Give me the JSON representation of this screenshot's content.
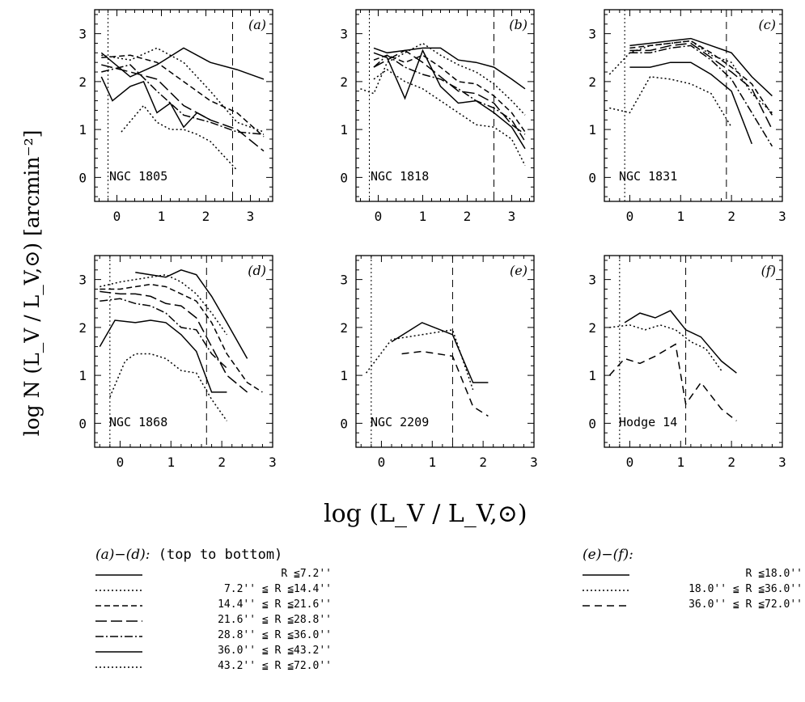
{
  "figure": {
    "ylabel": "log N (L_V / L_V,⊙) [arcmin⁻²]",
    "xlabel": "log (L_V / L_V,⊙)"
  },
  "chart_data": [
    {
      "type": "line",
      "panel_tag": "(a)",
      "cluster": "NGC 1805",
      "xlim": [
        -0.5,
        3.5
      ],
      "ylim": [
        -0.5,
        3.5
      ],
      "xticks": [
        "0",
        "1",
        "2",
        "3"
      ],
      "yticks": [
        "0",
        "1",
        "2",
        "3"
      ],
      "vline_dotted": -0.2,
      "vline_dashed": 2.6,
      "series": [
        {
          "style": "solid",
          "x": [
            -0.35,
            0.3,
            0.9,
            1.5,
            2.1,
            2.7,
            3.3
          ],
          "y": [
            2.6,
            2.1,
            2.35,
            2.7,
            2.4,
            2.25,
            2.05
          ]
        },
        {
          "style": "dotted",
          "x": [
            -0.35,
            0.3,
            0.9,
            1.5,
            2.1,
            2.7,
            3.3
          ],
          "y": [
            2.55,
            2.45,
            2.7,
            2.4,
            1.8,
            1.15,
            0.95
          ]
        },
        {
          "style": "short-dash",
          "x": [
            -0.35,
            0.3,
            0.9,
            1.5,
            2.1,
            2.7,
            3.3
          ],
          "y": [
            2.5,
            2.55,
            2.4,
            2.0,
            1.6,
            1.35,
            0.85
          ]
        },
        {
          "style": "long-dash",
          "x": [
            -0.35,
            0.3,
            0.9,
            1.5,
            2.1,
            2.7,
            3.3
          ],
          "y": [
            2.35,
            2.2,
            2.05,
            1.5,
            1.2,
            1.0,
            0.55
          ]
        },
        {
          "style": "dash-dot",
          "x": [
            -0.35,
            0.3,
            0.9,
            1.5,
            2.1,
            2.7,
            3.3
          ],
          "y": [
            2.2,
            2.35,
            1.8,
            1.3,
            1.15,
            0.95,
            0.9
          ]
        },
        {
          "style": "solid",
          "x": [
            -0.35,
            -0.1,
            0.3,
            0.6,
            0.9,
            1.2,
            1.5,
            1.8,
            2.1
          ],
          "y": [
            2.1,
            1.6,
            1.9,
            2.0,
            1.35,
            1.55,
            1.05,
            1.35,
            1.2
          ]
        },
        {
          "style": "dotted",
          "x": [
            0.1,
            0.6,
            0.9,
            1.2,
            1.5,
            1.8,
            2.1,
            2.4,
            2.7
          ],
          "y": [
            0.95,
            1.5,
            1.15,
            1.0,
            1.0,
            0.9,
            0.75,
            0.45,
            0.15
          ]
        }
      ]
    },
    {
      "type": "line",
      "panel_tag": "(b)",
      "cluster": "NGC 1818",
      "xlim": [
        -0.5,
        3.5
      ],
      "ylim": [
        -0.5,
        3.5
      ],
      "xticks": [
        "0",
        "1",
        "2",
        "3"
      ],
      "yticks": [
        "0",
        "1",
        "2",
        "3"
      ],
      "vline_dotted": -0.2,
      "vline_dashed": 2.6,
      "series": [
        {
          "style": "solid",
          "x": [
            -0.1,
            0.2,
            0.6,
            1.0,
            1.4,
            1.8,
            2.2,
            2.6,
            3.0,
            3.3
          ],
          "y": [
            2.7,
            2.6,
            2.65,
            2.7,
            2.7,
            2.45,
            2.4,
            2.3,
            2.05,
            1.85
          ]
        },
        {
          "style": "dotted",
          "x": [
            -0.4,
            -0.1,
            0.2,
            0.6,
            1.0,
            1.4,
            1.8,
            2.2,
            2.6,
            3.0,
            3.3
          ],
          "y": [
            1.85,
            1.75,
            2.4,
            2.6,
            2.8,
            2.55,
            2.35,
            2.2,
            1.95,
            1.6,
            1.3
          ]
        },
        {
          "style": "short-dash",
          "x": [
            -0.1,
            0.2,
            0.6,
            1.0,
            1.4,
            1.8,
            2.2,
            2.6,
            3.0,
            3.3
          ],
          "y": [
            2.45,
            2.55,
            2.4,
            2.55,
            2.3,
            2.0,
            1.95,
            1.7,
            1.35,
            0.95
          ]
        },
        {
          "style": "long-dash",
          "x": [
            -0.1,
            0.2,
            0.6,
            1.0,
            1.4,
            1.8,
            2.2,
            2.6,
            3.0,
            3.3
          ],
          "y": [
            2.3,
            2.45,
            2.65,
            2.4,
            2.1,
            1.8,
            1.75,
            1.55,
            1.1,
            0.9
          ]
        },
        {
          "style": "dash-dot",
          "x": [
            -0.1,
            0.2,
            0.6,
            1.0,
            1.4,
            1.8,
            2.2,
            2.6,
            3.0,
            3.3
          ],
          "y": [
            2.3,
            2.55,
            2.3,
            2.15,
            2.05,
            1.85,
            1.6,
            1.45,
            1.2,
            0.75
          ]
        },
        {
          "style": "solid",
          "x": [
            -0.1,
            0.2,
            0.6,
            1.0,
            1.4,
            1.8,
            2.2,
            2.6,
            3.0,
            3.3
          ],
          "y": [
            2.6,
            2.5,
            1.65,
            2.65,
            1.9,
            1.55,
            1.6,
            1.35,
            1.05,
            0.6
          ]
        },
        {
          "style": "dotted",
          "x": [
            -0.1,
            0.2,
            0.6,
            1.0,
            1.4,
            1.8,
            2.2,
            2.6,
            3.0,
            3.3
          ],
          "y": [
            2.05,
            2.25,
            2.0,
            1.85,
            1.6,
            1.35,
            1.1,
            1.05,
            0.8,
            0.25
          ]
        }
      ]
    },
    {
      "type": "line",
      "panel_tag": "(c)",
      "cluster": "NGC 1831",
      "xlim": [
        -0.5,
        3.0
      ],
      "ylim": [
        -0.5,
        3.5
      ],
      "xticks": [
        "0",
        "1",
        "2",
        "3"
      ],
      "yticks": [
        "0",
        "1",
        "2",
        "3"
      ],
      "vline_dotted": -0.1,
      "vline_dashed": 1.9,
      "series": [
        {
          "style": "solid",
          "x": [
            0.0,
            0.4,
            0.8,
            1.2,
            1.6,
            2.0,
            2.4,
            2.8
          ],
          "y": [
            2.75,
            2.8,
            2.85,
            2.9,
            2.75,
            2.6,
            2.1,
            1.7
          ]
        },
        {
          "style": "dotted",
          "x": [
            -0.4,
            0.0,
            0.4,
            0.8,
            1.2,
            1.6,
            2.0,
            2.4,
            2.8
          ],
          "y": [
            2.15,
            2.6,
            2.75,
            2.8,
            2.85,
            2.55,
            2.4,
            1.75,
            1.35
          ]
        },
        {
          "style": "short-dash",
          "x": [
            0.0,
            0.4,
            0.8,
            1.2,
            1.6,
            2.0,
            2.4,
            2.8
          ],
          "y": [
            2.7,
            2.75,
            2.8,
            2.85,
            2.6,
            2.3,
            1.95,
            1.3
          ]
        },
        {
          "style": "long-dash",
          "x": [
            0.0,
            0.4,
            0.8,
            1.2,
            1.6,
            2.0,
            2.4,
            2.8
          ],
          "y": [
            2.65,
            2.65,
            2.75,
            2.8,
            2.5,
            2.2,
            1.85,
            1.0
          ]
        },
        {
          "style": "dash-dot",
          "x": [
            0.0,
            0.4,
            0.8,
            1.2,
            1.6,
            2.0,
            2.4,
            2.8
          ],
          "y": [
            2.6,
            2.6,
            2.7,
            2.75,
            2.45,
            2.05,
            1.35,
            0.65
          ]
        },
        {
          "style": "solid",
          "x": [
            0.0,
            0.4,
            0.8,
            1.2,
            1.6,
            2.0,
            2.4
          ],
          "y": [
            2.3,
            2.3,
            2.4,
            2.4,
            2.15,
            1.8,
            0.7
          ]
        },
        {
          "style": "dotted",
          "x": [
            -0.4,
            0.0,
            0.4,
            0.8,
            1.2,
            1.6,
            2.0
          ],
          "y": [
            1.45,
            1.35,
            2.1,
            2.05,
            1.95,
            1.75,
            1.05
          ]
        }
      ]
    },
    {
      "type": "line",
      "panel_tag": "(d)",
      "cluster": "NGC 1868",
      "xlim": [
        -0.5,
        3.0
      ],
      "ylim": [
        -0.5,
        3.5
      ],
      "xticks": [
        "0",
        "1",
        "2",
        "3"
      ],
      "yticks": [
        "0",
        "1",
        "2",
        "3"
      ],
      "vline_dotted": -0.2,
      "vline_dashed": 1.7,
      "series": [
        {
          "style": "solid",
          "x": [
            0.3,
            0.6,
            0.9,
            1.2,
            1.5,
            1.8,
            2.1,
            2.5
          ],
          "y": [
            3.15,
            3.1,
            3.05,
            3.2,
            3.1,
            2.65,
            2.1,
            1.35
          ]
        },
        {
          "style": "dotted",
          "x": [
            -0.4,
            0.0,
            0.3,
            0.6,
            0.9,
            1.2,
            1.5,
            1.8,
            2.1
          ],
          "y": [
            2.85,
            2.95,
            3.0,
            3.05,
            3.1,
            2.95,
            2.7,
            2.3,
            1.85
          ]
        },
        {
          "style": "short-dash",
          "x": [
            -0.4,
            0.0,
            0.3,
            0.6,
            0.9,
            1.2,
            1.5,
            1.8,
            2.1,
            2.5,
            2.8
          ],
          "y": [
            2.8,
            2.8,
            2.85,
            2.9,
            2.85,
            2.7,
            2.55,
            2.1,
            1.45,
            0.85,
            0.65
          ]
        },
        {
          "style": "long-dash",
          "x": [
            -0.4,
            0.0,
            0.3,
            0.6,
            0.9,
            1.2,
            1.5,
            1.8,
            2.1,
            2.5
          ],
          "y": [
            2.75,
            2.7,
            2.7,
            2.65,
            2.5,
            2.45,
            2.2,
            1.6,
            1.0,
            0.65
          ]
        },
        {
          "style": "dash-dot",
          "x": [
            -0.4,
            0.0,
            0.3,
            0.6,
            0.9,
            1.2,
            1.5,
            1.8,
            2.1
          ],
          "y": [
            2.55,
            2.6,
            2.5,
            2.45,
            2.3,
            2.0,
            1.95,
            1.45,
            1.15
          ]
        },
        {
          "style": "solid",
          "x": [
            -0.4,
            -0.1,
            0.3,
            0.6,
            0.9,
            1.2,
            1.5,
            1.8,
            2.1
          ],
          "y": [
            1.6,
            2.15,
            2.1,
            2.15,
            2.1,
            1.85,
            1.5,
            0.65,
            0.65
          ]
        },
        {
          "style": "dotted",
          "x": [
            -0.2,
            0.1,
            0.3,
            0.6,
            0.9,
            1.2,
            1.5,
            1.8,
            2.1
          ],
          "y": [
            0.55,
            1.3,
            1.45,
            1.45,
            1.35,
            1.1,
            1.05,
            0.5,
            0.05
          ]
        }
      ]
    },
    {
      "type": "line",
      "panel_tag": "(e)",
      "cluster": "NGC 2209",
      "xlim": [
        -0.5,
        3.0
      ],
      "ylim": [
        -0.5,
        3.5
      ],
      "xticks": [
        "0",
        "1",
        "2",
        "3"
      ],
      "yticks": [
        "0",
        "1",
        "2",
        "3"
      ],
      "vline_dotted": -0.2,
      "vline_dashed": 1.4,
      "series": [
        {
          "style": "solid",
          "x": [
            0.2,
            0.8,
            1.4,
            1.8,
            2.1
          ],
          "y": [
            1.7,
            2.1,
            1.85,
            0.85,
            0.85
          ]
        },
        {
          "style": "dotted",
          "x": [
            -0.3,
            0.2,
            0.8,
            1.4,
            1.8
          ],
          "y": [
            1.05,
            1.75,
            1.85,
            1.95,
            0.7
          ]
        },
        {
          "style": "dashed",
          "x": [
            0.4,
            0.8,
            1.4,
            1.8,
            2.1
          ],
          "y": [
            1.45,
            1.5,
            1.4,
            0.35,
            0.15
          ]
        }
      ]
    },
    {
      "type": "line",
      "panel_tag": "(f)",
      "cluster": "Hodge 14",
      "xlim": [
        -0.5,
        3.0
      ],
      "ylim": [
        -0.5,
        3.5
      ],
      "xticks": [
        "0",
        "1",
        "2",
        "3"
      ],
      "yticks": [
        "0",
        "1",
        "2",
        "3"
      ],
      "vline_dotted": -0.2,
      "vline_dashed": 1.1,
      "series": [
        {
          "style": "solid",
          "x": [
            -0.1,
            0.2,
            0.5,
            0.8,
            1.1,
            1.4,
            1.8,
            2.1
          ],
          "y": [
            2.1,
            2.3,
            2.2,
            2.35,
            1.95,
            1.8,
            1.3,
            1.05
          ]
        },
        {
          "style": "dotted",
          "x": [
            -0.4,
            0.0,
            0.3,
            0.6,
            0.9,
            1.2,
            1.5,
            1.8
          ],
          "y": [
            2.0,
            2.05,
            1.95,
            2.05,
            1.95,
            1.7,
            1.55,
            1.1
          ]
        },
        {
          "style": "dashed",
          "x": [
            -0.4,
            -0.1,
            0.2,
            0.5,
            0.9,
            1.1,
            1.4,
            1.8,
            2.1
          ],
          "y": [
            1.0,
            1.35,
            1.25,
            1.4,
            1.65,
            0.4,
            0.85,
            0.3,
            0.05
          ]
        }
      ]
    }
  ],
  "legend_left": {
    "head_italic": "(a)−(d):",
    "head_rest": " (top to bottom)",
    "rows": [
      {
        "style": "solid",
        "text": "R ≦7.2''"
      },
      {
        "style": "dotted",
        "text": "7.2'' ≦ R ≦14.4''"
      },
      {
        "style": "short-dash",
        "text": "14.4'' ≦ R ≦21.6''"
      },
      {
        "style": "long-dash",
        "text": "21.6'' ≦ R ≦28.8''"
      },
      {
        "style": "dash-dot",
        "text": "28.8'' ≦ R ≦36.0''"
      },
      {
        "style": "solid",
        "text": "36.0'' ≦ R ≦43.2''"
      },
      {
        "style": "dotted",
        "text": "43.2'' ≦ R ≦72.0''"
      }
    ]
  },
  "legend_right": {
    "head_italic": "(e)−(f):",
    "head_rest": "",
    "rows": [
      {
        "style": "solid",
        "text": "R ≦18.0''"
      },
      {
        "style": "dotted",
        "text": "18.0'' ≦ R ≦36.0''"
      },
      {
        "style": "dashed",
        "text": "36.0'' ≦ R ≦72.0''"
      }
    ]
  }
}
